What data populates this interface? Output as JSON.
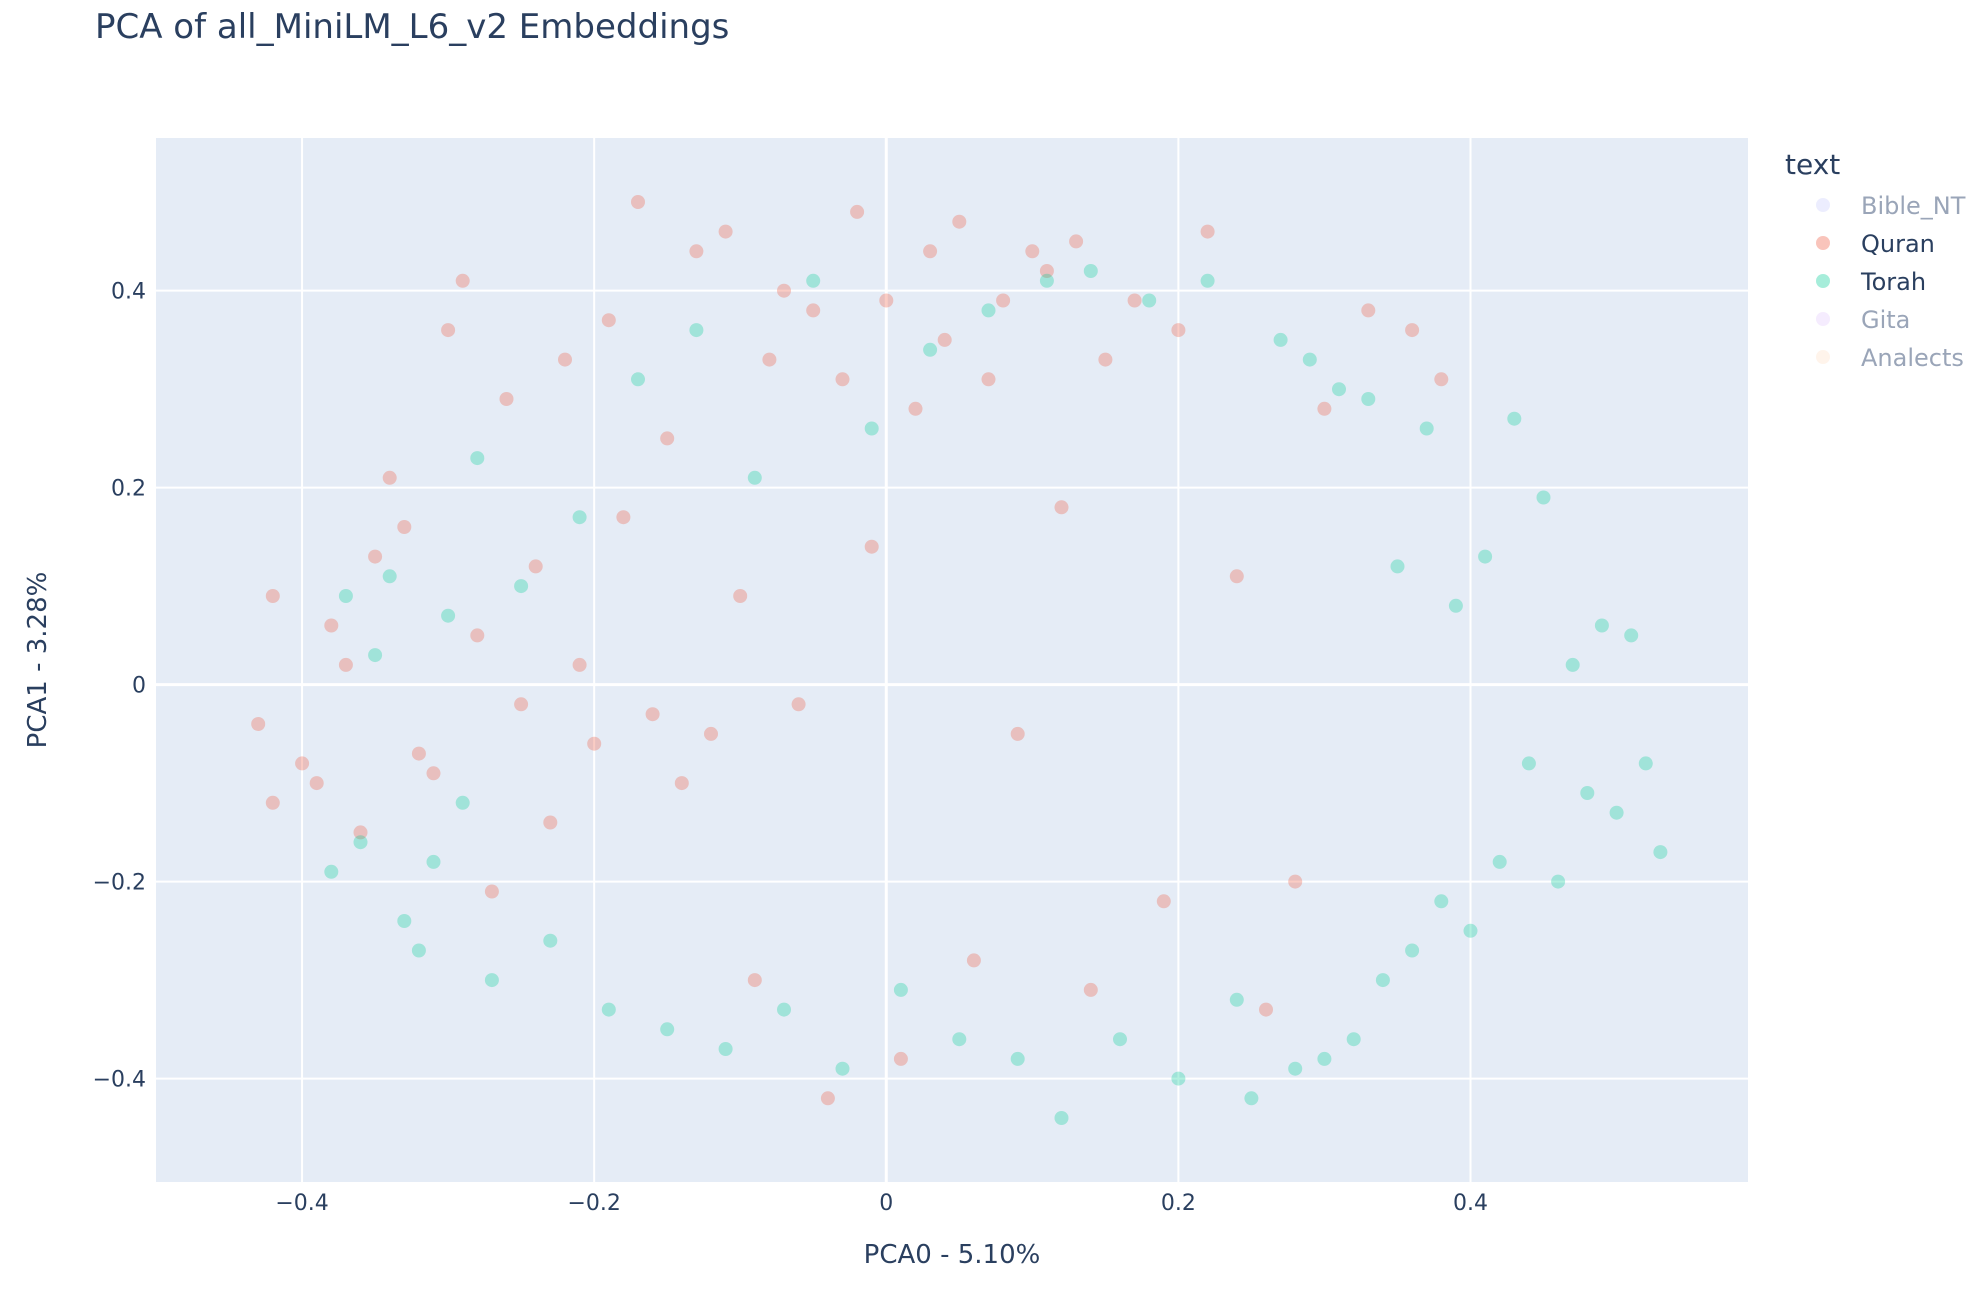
{
  "chart_data": {
    "type": "scatter",
    "title": "PCA of all_MiniLM_L6_v2 Embeddings",
    "xlabel": "PCA0 - 5.10%",
    "ylabel": "PCA1 - 3.28%",
    "xlim": [
      -0.5,
      0.59
    ],
    "ylim": [
      -0.505,
      0.555
    ],
    "xticks": [
      -0.4,
      -0.2,
      0,
      0.2,
      0.4
    ],
    "xtick_labels": [
      "−0.4",
      "−0.2",
      "0",
      "0.2",
      "0.4"
    ],
    "yticks": [
      -0.4,
      -0.2,
      0,
      0.2,
      0.4
    ],
    "ytick_labels": [
      "−0.4",
      "−0.2",
      "0",
      "0.2",
      "0.4"
    ],
    "grid": true,
    "plot_bgcolor": "#e5ecf6",
    "legend": {
      "title": "text",
      "placement": "right",
      "items": [
        {
          "name": "Bible_NT",
          "color": "#636efa",
          "visible": false
        },
        {
          "name": "Quran",
          "color": "#ef553b",
          "visible": true
        },
        {
          "name": "Torah",
          "color": "#00cc96",
          "visible": true
        },
        {
          "name": "Gita",
          "color": "#ab63fa",
          "visible": false
        },
        {
          "name": "Analects",
          "color": "#ffa15a",
          "visible": false
        }
      ]
    },
    "series": [
      {
        "name": "Quran",
        "color": "#ef553b",
        "opacity": 0.3,
        "points": [
          [
            -0.43,
            -0.04
          ],
          [
            -0.42,
            0.09
          ],
          [
            -0.42,
            -0.12
          ],
          [
            -0.4,
            -0.08
          ],
          [
            -0.39,
            -0.1
          ],
          [
            -0.38,
            0.06
          ],
          [
            -0.37,
            0.02
          ],
          [
            -0.36,
            -0.15
          ],
          [
            -0.35,
            0.13
          ],
          [
            -0.34,
            0.21
          ],
          [
            -0.33,
            0.16
          ],
          [
            -0.32,
            -0.07
          ],
          [
            -0.31,
            -0.09
          ],
          [
            -0.3,
            0.36
          ],
          [
            -0.29,
            0.41
          ],
          [
            -0.28,
            0.05
          ],
          [
            -0.27,
            -0.21
          ],
          [
            -0.26,
            0.29
          ],
          [
            -0.25,
            -0.02
          ],
          [
            -0.24,
            0.12
          ],
          [
            -0.23,
            -0.14
          ],
          [
            -0.22,
            0.33
          ],
          [
            -0.21,
            0.02
          ],
          [
            -0.2,
            -0.06
          ],
          [
            -0.19,
            0.37
          ],
          [
            -0.18,
            0.17
          ],
          [
            -0.17,
            0.49
          ],
          [
            -0.16,
            -0.03
          ],
          [
            -0.15,
            0.25
          ],
          [
            -0.14,
            -0.1
          ],
          [
            -0.13,
            0.44
          ],
          [
            -0.12,
            -0.05
          ],
          [
            -0.11,
            0.46
          ],
          [
            -0.1,
            0.09
          ],
          [
            -0.09,
            -0.3
          ],
          [
            -0.08,
            0.33
          ],
          [
            -0.07,
            0.4
          ],
          [
            -0.06,
            -0.02
          ],
          [
            -0.05,
            0.38
          ],
          [
            -0.04,
            -0.42
          ],
          [
            -0.03,
            0.31
          ],
          [
            -0.02,
            0.48
          ],
          [
            -0.01,
            0.14
          ],
          [
            0.0,
            0.39
          ],
          [
            0.01,
            -0.38
          ],
          [
            0.02,
            0.28
          ],
          [
            0.03,
            0.44
          ],
          [
            0.04,
            0.35
          ],
          [
            0.05,
            0.47
          ],
          [
            0.06,
            -0.28
          ],
          [
            0.07,
            0.31
          ],
          [
            0.08,
            0.39
          ],
          [
            0.09,
            -0.05
          ],
          [
            0.1,
            0.44
          ],
          [
            0.11,
            0.42
          ],
          [
            0.12,
            0.18
          ],
          [
            0.13,
            0.45
          ],
          [
            0.14,
            -0.31
          ],
          [
            0.15,
            0.33
          ],
          [
            0.17,
            0.39
          ],
          [
            0.19,
            -0.22
          ],
          [
            0.2,
            0.36
          ],
          [
            0.22,
            0.46
          ],
          [
            0.24,
            0.11
          ],
          [
            0.26,
            -0.33
          ],
          [
            0.28,
            -0.2
          ],
          [
            0.3,
            0.28
          ],
          [
            0.33,
            0.38
          ],
          [
            0.36,
            0.36
          ],
          [
            0.38,
            0.31
          ]
        ]
      },
      {
        "name": "Torah",
        "color": "#00cc96",
        "opacity": 0.3,
        "points": [
          [
            -0.38,
            -0.19
          ],
          [
            -0.37,
            0.09
          ],
          [
            -0.36,
            -0.16
          ],
          [
            -0.35,
            0.03
          ],
          [
            -0.34,
            0.11
          ],
          [
            -0.33,
            -0.24
          ],
          [
            -0.32,
            -0.27
          ],
          [
            -0.31,
            -0.18
          ],
          [
            -0.3,
            0.07
          ],
          [
            -0.29,
            -0.12
          ],
          [
            -0.28,
            0.23
          ],
          [
            -0.27,
            -0.3
          ],
          [
            -0.25,
            0.1
          ],
          [
            -0.23,
            -0.26
          ],
          [
            -0.21,
            0.17
          ],
          [
            -0.19,
            -0.33
          ],
          [
            -0.17,
            0.31
          ],
          [
            -0.15,
            -0.35
          ],
          [
            -0.13,
            0.36
          ],
          [
            -0.11,
            -0.37
          ],
          [
            -0.09,
            0.21
          ],
          [
            -0.07,
            -0.33
          ],
          [
            -0.05,
            0.41
          ],
          [
            -0.03,
            -0.39
          ],
          [
            -0.01,
            0.26
          ],
          [
            0.01,
            -0.31
          ],
          [
            0.03,
            0.34
          ],
          [
            0.05,
            -0.36
          ],
          [
            0.07,
            0.38
          ],
          [
            0.09,
            -0.38
          ],
          [
            0.11,
            0.41
          ],
          [
            0.12,
            -0.44
          ],
          [
            0.14,
            0.42
          ],
          [
            0.16,
            -0.36
          ],
          [
            0.18,
            0.39
          ],
          [
            0.2,
            -0.4
          ],
          [
            0.22,
            0.41
          ],
          [
            0.24,
            -0.32
          ],
          [
            0.25,
            -0.42
          ],
          [
            0.27,
            0.35
          ],
          [
            0.28,
            -0.39
          ],
          [
            0.29,
            0.33
          ],
          [
            0.3,
            -0.38
          ],
          [
            0.31,
            0.3
          ],
          [
            0.32,
            -0.36
          ],
          [
            0.33,
            0.29
          ],
          [
            0.34,
            -0.3
          ],
          [
            0.35,
            0.12
          ],
          [
            0.36,
            -0.27
          ],
          [
            0.37,
            0.26
          ],
          [
            0.38,
            -0.22
          ],
          [
            0.39,
            0.08
          ],
          [
            0.4,
            -0.25
          ],
          [
            0.41,
            0.13
          ],
          [
            0.42,
            -0.18
          ],
          [
            0.43,
            0.27
          ],
          [
            0.44,
            -0.08
          ],
          [
            0.45,
            0.19
          ],
          [
            0.46,
            -0.2
          ],
          [
            0.47,
            0.02
          ],
          [
            0.48,
            -0.11
          ],
          [
            0.49,
            0.06
          ],
          [
            0.5,
            -0.13
          ],
          [
            0.51,
            0.05
          ],
          [
            0.52,
            -0.08
          ],
          [
            0.53,
            -0.17
          ]
        ]
      }
    ]
  }
}
